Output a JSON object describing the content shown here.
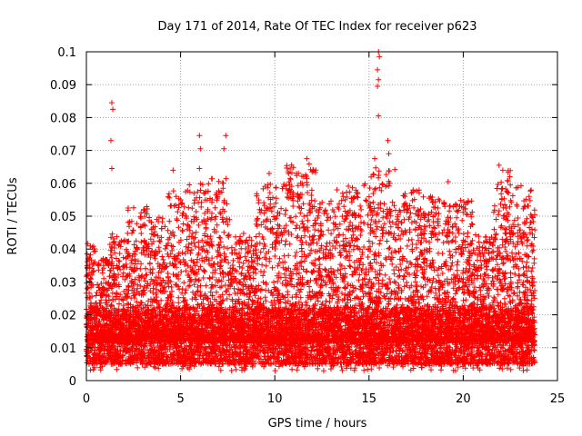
{
  "chart_data": {
    "type": "scatter",
    "title": "Day 171 of 2014, Rate Of TEC Index for receiver p623",
    "xlabel": "GPS time / hours",
    "ylabel": "ROTI / TECUs",
    "xlim": [
      0,
      25
    ],
    "ylim": [
      0,
      0.1
    ],
    "xticks": [
      0,
      5,
      10,
      15,
      20,
      25
    ],
    "yticks": [
      0,
      0.01,
      0.02,
      0.03,
      0.04,
      0.05,
      0.06,
      0.07,
      0.08,
      0.09,
      0.1
    ],
    "ytick_labels": [
      "0",
      "0.01",
      "0.02",
      "0.03",
      "0.04",
      "0.05",
      "0.06",
      "0.07",
      "0.08",
      "0.09",
      "0.1"
    ],
    "grid": true,
    "marker": "+",
    "series_color": "#ff0000",
    "data_range_x": [
      0,
      23.8
    ],
    "baseline_band": [
      0.005,
      0.02
    ],
    "notable_points": [
      {
        "x": 1.35,
        "y": 0.0845
      },
      {
        "x": 1.4,
        "y": 0.0825
      },
      {
        "x": 1.3,
        "y": 0.073
      },
      {
        "x": 1.35,
        "y": 0.0645
      },
      {
        "x": 4.6,
        "y": 0.064
      },
      {
        "x": 6.0,
        "y": 0.0745
      },
      {
        "x": 6.05,
        "y": 0.0705
      },
      {
        "x": 6.0,
        "y": 0.0645
      },
      {
        "x": 7.4,
        "y": 0.0745
      },
      {
        "x": 7.3,
        "y": 0.0705
      },
      {
        "x": 9.7,
        "y": 0.063
      },
      {
        "x": 11.7,
        "y": 0.0675
      },
      {
        "x": 13.3,
        "y": 0.058
      },
      {
        "x": 15.5,
        "y": 0.1
      },
      {
        "x": 15.55,
        "y": 0.0985
      },
      {
        "x": 15.45,
        "y": 0.0945
      },
      {
        "x": 15.5,
        "y": 0.0915
      },
      {
        "x": 15.45,
        "y": 0.0895
      },
      {
        "x": 15.5,
        "y": 0.0805
      },
      {
        "x": 16.0,
        "y": 0.073
      },
      {
        "x": 16.05,
        "y": 0.069
      },
      {
        "x": 15.3,
        "y": 0.0675
      },
      {
        "x": 16.1,
        "y": 0.06
      },
      {
        "x": 19.2,
        "y": 0.0605
      },
      {
        "x": 21.9,
        "y": 0.0655
      },
      {
        "x": 22.1,
        "y": 0.064
      },
      {
        "x": 22.5,
        "y": 0.0595
      }
    ],
    "clusters": [
      {
        "x_from": 0,
        "x_to": 0.5,
        "y_max": 0.043
      },
      {
        "x_from": 0.5,
        "x_to": 1.2,
        "y_max": 0.038
      },
      {
        "x_from": 1.2,
        "x_to": 2.2,
        "y_max": 0.045
      },
      {
        "x_from": 2.2,
        "x_to": 3.3,
        "y_max": 0.053
      },
      {
        "x_from": 3.3,
        "x_to": 4.3,
        "y_max": 0.05
      },
      {
        "x_from": 4.3,
        "x_to": 5.4,
        "y_max": 0.058
      },
      {
        "x_from": 5.4,
        "x_to": 6.5,
        "y_max": 0.06
      },
      {
        "x_from": 6.5,
        "x_to": 7.6,
        "y_max": 0.062
      },
      {
        "x_from": 7.6,
        "x_to": 9.0,
        "y_max": 0.045
      },
      {
        "x_from": 9.0,
        "x_to": 10.6,
        "y_max": 0.06
      },
      {
        "x_from": 10.6,
        "x_to": 12.2,
        "y_max": 0.066
      },
      {
        "x_from": 12.2,
        "x_to": 13.6,
        "y_max": 0.055
      },
      {
        "x_from": 13.6,
        "x_to": 15.0,
        "y_max": 0.06
      },
      {
        "x_from": 15.0,
        "x_to": 16.4,
        "y_max": 0.065
      },
      {
        "x_from": 16.4,
        "x_to": 17.8,
        "y_max": 0.058
      },
      {
        "x_from": 17.8,
        "x_to": 19.0,
        "y_max": 0.056
      },
      {
        "x_from": 19.0,
        "x_to": 20.5,
        "y_max": 0.055
      },
      {
        "x_from": 20.5,
        "x_to": 21.6,
        "y_max": 0.045
      },
      {
        "x_from": 21.6,
        "x_to": 22.6,
        "y_max": 0.065
      },
      {
        "x_from": 22.6,
        "x_to": 23.8,
        "y_max": 0.06
      }
    ]
  }
}
